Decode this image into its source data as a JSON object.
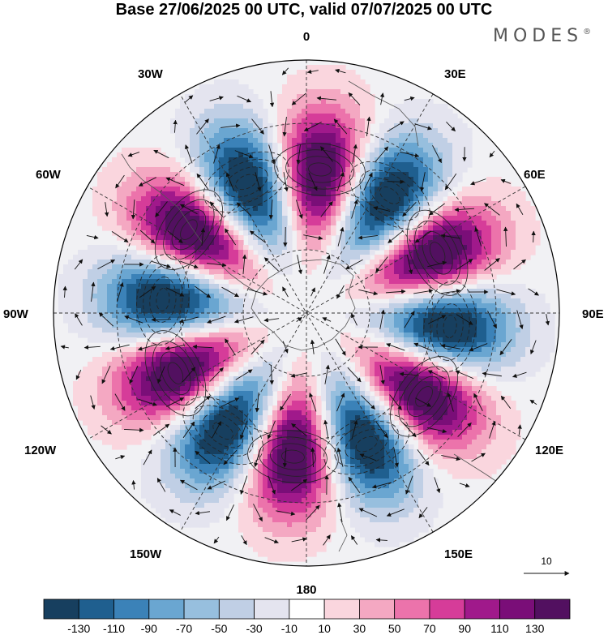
{
  "title": "Base 27/06/2025 00 UTC, valid 07/07/2025 00 UTC",
  "brand": {
    "name": "MODES",
    "mark": "®"
  },
  "longitude_labels": {
    "lon_0": "0",
    "lon_30e": "30E",
    "lon_60e": "60E",
    "lon_90e": "90E",
    "lon_120e": "120E",
    "lon_150e": "150E",
    "lon_180": "180",
    "lon_150w": "150W",
    "lon_120w": "120W",
    "lon_90w": "90W",
    "lon_60w": "60W",
    "lon_30w": "30W"
  },
  "reference_vector": {
    "label": "10"
  },
  "colorbar": {
    "bins": [
      {
        "color": "#173f5f"
      },
      {
        "color": "#1f5f8f"
      },
      {
        "color": "#3b82b8"
      },
      {
        "color": "#6aa6d1"
      },
      {
        "color": "#97bfde"
      },
      {
        "color": "#c0cfe5"
      },
      {
        "color": "#e4e4ef"
      },
      {
        "color": "#ffffff"
      },
      {
        "color": "#fad6de"
      },
      {
        "color": "#f4a8c2"
      },
      {
        "color": "#ec73ab"
      },
      {
        "color": "#d63c99"
      },
      {
        "color": "#a0198b"
      },
      {
        "color": "#7a0e78"
      },
      {
        "color": "#521060"
      }
    ],
    "tick_labels": [
      "-130",
      "-110",
      "-90",
      "-70",
      "-50",
      "-30",
      "-10",
      "10",
      "30",
      "50",
      "70",
      "90",
      "110",
      "130"
    ]
  },
  "pattern": {
    "zonal_wavenumber": 6,
    "phase_deg": 32,
    "background": "#f1f1f4"
  }
}
